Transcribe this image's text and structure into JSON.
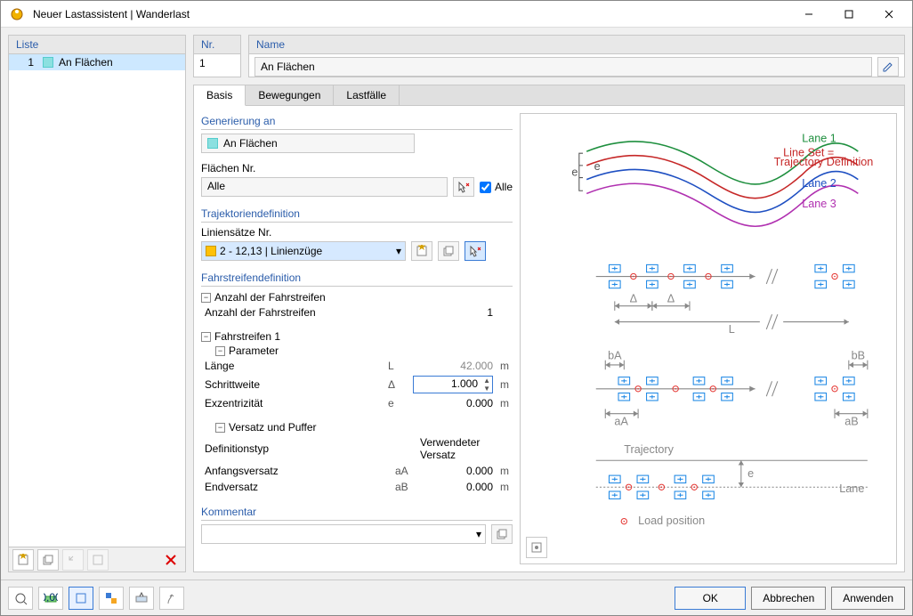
{
  "window": {
    "title": "Neuer Lastassistent | Wanderlast"
  },
  "sidebar": {
    "header": "Liste",
    "items": [
      {
        "num": "1",
        "label": "An Flächen"
      }
    ]
  },
  "nr": {
    "header": "Nr.",
    "value": "1"
  },
  "name": {
    "header": "Name",
    "value": "An Flächen"
  },
  "tabs": {
    "basis": "Basis",
    "bewegungen": "Bewegungen",
    "lastfaelle": "Lastfälle"
  },
  "sections": {
    "generierung_an": {
      "title": "Generierung an",
      "value": "An Flächen"
    },
    "flaechen_nr": {
      "label": "Flächen Nr.",
      "value": "Alle",
      "alle": "Alle"
    },
    "trajektorie": {
      "title": "Trajektoriendefinition",
      "linien_label": "Liniensätze Nr.",
      "linien_value": "2 - 12,13 | Linienzüge"
    },
    "fahrstreifen": {
      "title": "Fahrstreifendefinition",
      "anzahl_label": "Anzahl der Fahrstreifen",
      "anzahl_sub": "Anzahl der Fahrstreifen",
      "anzahl_val": "1",
      "f1_label": "Fahrstreifen 1",
      "param_label": "Parameter",
      "rows": {
        "laenge": {
          "label": "Länge",
          "sym": "L",
          "val": "42.000",
          "unit": "m"
        },
        "schritt": {
          "label": "Schrittweite",
          "sym": "Δ",
          "val": "1.000",
          "unit": "m"
        },
        "exz": {
          "label": "Exzentrizität",
          "sym": "e",
          "val": "0.000",
          "unit": "m"
        }
      },
      "versatz_label": "Versatz und Puffer",
      "versatz_rows": {
        "def": {
          "label": "Definitionstyp",
          "val": "Verwendeter Versatz"
        },
        "anfang": {
          "label": "Anfangsversatz",
          "sym": "aA",
          "val": "0.000",
          "unit": "m"
        },
        "ende": {
          "label": "Endversatz",
          "sym": "aB",
          "val": "0.000",
          "unit": "m"
        }
      }
    },
    "kommentar": {
      "title": "Kommentar",
      "value": ""
    }
  },
  "footer": {
    "ok": "OK",
    "cancel": "Abbrechen",
    "apply": "Anwenden"
  },
  "preview": {
    "lanes": {
      "colors": {
        "lane1": "#1e8f3e",
        "lineset": "#c62828",
        "lane2": "#1e4fc2",
        "lane3": "#b030b0"
      },
      "labels": {
        "lane1": "Lane 1",
        "lineset_a": "Line Set =",
        "lineset_b": "Trajectory Definition",
        "lane2": "Lane 2",
        "lane3": "Lane 3",
        "e": "e"
      }
    },
    "schematic": {
      "colors": {
        "node": "#1e88e5",
        "arrow": "#888",
        "load": "#e53935",
        "text": "#888"
      },
      "labels": {
        "delta": "Δ",
        "L": "L",
        "bA": "bA",
        "bB": "bB",
        "aA": "aA",
        "aB": "aB",
        "traj": "Trajectory",
        "e": "e",
        "lane": "Lane",
        "loadpos": "Load position"
      }
    }
  }
}
